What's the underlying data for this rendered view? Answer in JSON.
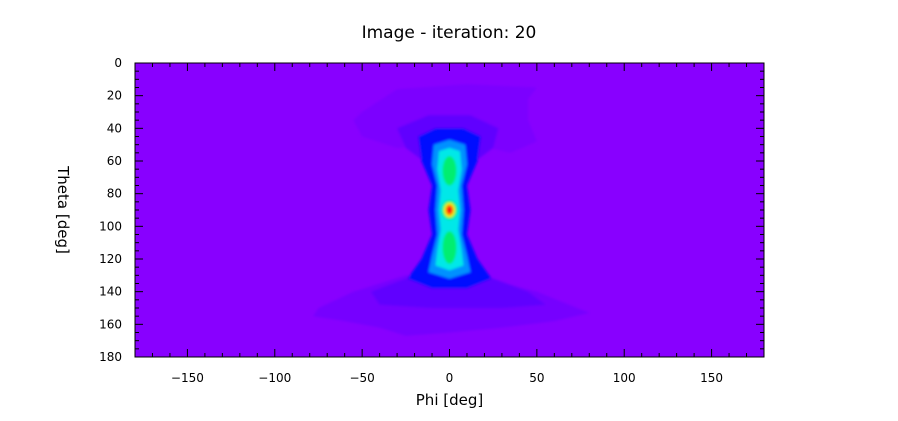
{
  "chart_data": {
    "type": "heatmap",
    "title": "Image - iteration: 20",
    "xlabel": "Phi [deg]",
    "ylabel": "Theta [deg]",
    "xlim": [
      -180,
      180
    ],
    "ylim": [
      180,
      0
    ],
    "x_ticks": [
      -150,
      -100,
      -50,
      0,
      50,
      100,
      150
    ],
    "x_tick_labels": [
      "−150",
      "−100",
      "−50",
      "0",
      "50",
      "100",
      "150"
    ],
    "y_ticks": [
      0,
      20,
      40,
      60,
      80,
      100,
      120,
      140,
      160,
      180
    ],
    "y_tick_labels": [
      "0",
      "20",
      "40",
      "60",
      "80",
      "100",
      "120",
      "140",
      "160",
      "180"
    ],
    "colormap": "rainbow (purple-blue-cyan-green-yellow-red)",
    "background_color": "#8800ff",
    "peak": {
      "phi": 0,
      "theta": 90
    },
    "secondary_lobes": [
      {
        "phi": 0,
        "theta": 67
      },
      {
        "phi": 0,
        "theta": 113
      }
    ],
    "grid": false,
    "legend": "none"
  }
}
